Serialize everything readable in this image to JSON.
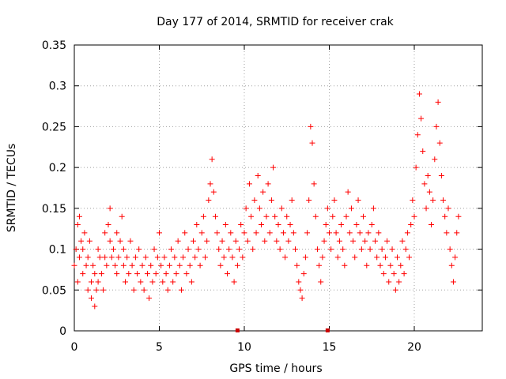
{
  "chart_data": {
    "type": "scatter",
    "title": "Day 177 of 2014, SRMTID for receiver crak",
    "xlabel": "GPS time / hours",
    "ylabel": "SRMTID / TECUs",
    "xlim": [
      0,
      24
    ],
    "ylim": [
      0,
      0.35
    ],
    "xticks": [
      0,
      5,
      10,
      15,
      20
    ],
    "xtick_labels": [
      "0",
      "5",
      "10",
      "15",
      "20"
    ],
    "yticks": [
      0,
      0.05,
      0.1,
      0.15,
      0.2,
      0.25,
      0.3,
      0.35
    ],
    "ytick_labels": [
      "0",
      "0.05",
      "0.1",
      "0.15",
      "0.2",
      "0.25",
      "0.3",
      "0.35"
    ],
    "grid": true,
    "marker": "plus",
    "color": "#ff0000",
    "marker_color_zero": "#cc0000",
    "series": [
      {
        "name": "SRMTID",
        "x": [
          0.0,
          0.1,
          0.2,
          0.2,
          0.3,
          0.3,
          0.4,
          0.5,
          0.5,
          0.6,
          0.7,
          0.8,
          0.8,
          0.9,
          1.0,
          1.0,
          1.1,
          1.2,
          1.2,
          1.3,
          1.4,
          1.4,
          1.5,
          1.6,
          1.7,
          1.8,
          1.8,
          1.9,
          2.0,
          2.1,
          2.1,
          2.2,
          2.3,
          2.4,
          2.5,
          2.5,
          2.6,
          2.7,
          2.8,
          2.9,
          2.9,
          3.0,
          3.1,
          3.2,
          3.3,
          3.4,
          3.5,
          3.6,
          3.7,
          3.8,
          3.9,
          4.0,
          4.1,
          4.2,
          4.3,
          4.4,
          4.5,
          4.6,
          4.7,
          4.8,
          4.9,
          5.0,
          5.1,
          5.2,
          5.3,
          5.4,
          5.5,
          5.6,
          5.7,
          5.8,
          5.9,
          6.0,
          6.1,
          6.2,
          6.3,
          6.4,
          6.5,
          6.6,
          6.7,
          6.8,
          6.9,
          7.0,
          7.1,
          7.2,
          7.3,
          7.4,
          7.5,
          7.6,
          7.7,
          7.8,
          7.9,
          8.0,
          8.1,
          8.2,
          8.3,
          8.4,
          8.5,
          8.6,
          8.7,
          8.8,
          8.9,
          9.0,
          9.1,
          9.2,
          9.3,
          9.4,
          9.5,
          9.6,
          9.7,
          9.8,
          9.9,
          10.0,
          10.1,
          10.2,
          10.3,
          10.4,
          10.5,
          10.6,
          10.7,
          10.8,
          10.9,
          11.0,
          11.1,
          11.2,
          11.3,
          11.4,
          11.5,
          11.6,
          11.7,
          11.8,
          11.9,
          12.0,
          12.1,
          12.2,
          12.3,
          12.4,
          12.5,
          12.6,
          12.7,
          12.8,
          12.9,
          13.0,
          13.1,
          13.2,
          13.3,
          13.4,
          13.5,
          13.6,
          13.7,
          13.8,
          13.9,
          14.0,
          14.1,
          14.2,
          14.3,
          14.4,
          14.5,
          14.6,
          14.7,
          14.8,
          14.9,
          15.0,
          15.1,
          15.2,
          15.3,
          15.4,
          15.5,
          15.6,
          15.7,
          15.8,
          15.9,
          16.0,
          16.1,
          16.2,
          16.3,
          16.4,
          16.5,
          16.6,
          16.7,
          16.8,
          16.9,
          17.0,
          17.1,
          17.2,
          17.3,
          17.4,
          17.5,
          17.6,
          17.7,
          17.8,
          17.9,
          18.0,
          18.1,
          18.2,
          18.3,
          18.4,
          18.5,
          18.6,
          18.7,
          18.8,
          18.9,
          19.0,
          19.1,
          19.2,
          19.3,
          19.4,
          19.5,
          19.6,
          19.7,
          19.8,
          19.9,
          20.0,
          20.1,
          20.2,
          20.3,
          20.4,
          20.5,
          20.6,
          20.7,
          20.8,
          20.9,
          21.0,
          21.1,
          21.2,
          21.3,
          21.4,
          21.5,
          21.6,
          21.7,
          21.8,
          21.9,
          22.0,
          22.1,
          22.2,
          22.3,
          22.4,
          22.5,
          22.6
        ],
        "y": [
          0.08,
          0.1,
          0.06,
          0.13,
          0.14,
          0.09,
          0.11,
          0.07,
          0.1,
          0.12,
          0.08,
          0.05,
          0.09,
          0.11,
          0.06,
          0.04,
          0.08,
          0.03,
          0.07,
          0.05,
          0.1,
          0.06,
          0.09,
          0.07,
          0.05,
          0.09,
          0.12,
          0.08,
          0.13,
          0.15,
          0.11,
          0.09,
          0.1,
          0.08,
          0.12,
          0.07,
          0.09,
          0.11,
          0.14,
          0.08,
          0.1,
          0.06,
          0.09,
          0.07,
          0.11,
          0.08,
          0.05,
          0.09,
          0.07,
          0.1,
          0.06,
          0.08,
          0.05,
          0.09,
          0.07,
          0.04,
          0.08,
          0.06,
          0.1,
          0.07,
          0.09,
          0.12,
          0.08,
          0.06,
          0.09,
          0.07,
          0.05,
          0.08,
          0.1,
          0.06,
          0.09,
          0.07,
          0.11,
          0.08,
          0.05,
          0.09,
          0.12,
          0.07,
          0.1,
          0.08,
          0.06,
          0.11,
          0.09,
          0.13,
          0.1,
          0.08,
          0.12,
          0.14,
          0.09,
          0.11,
          0.16,
          0.18,
          0.21,
          0.17,
          0.14,
          0.12,
          0.1,
          0.08,
          0.11,
          0.09,
          0.13,
          0.07,
          0.1,
          0.12,
          0.09,
          0.06,
          0.11,
          0.08,
          0.1,
          0.13,
          0.09,
          0.12,
          0.15,
          0.11,
          0.18,
          0.14,
          0.1,
          0.16,
          0.12,
          0.19,
          0.15,
          0.13,
          0.17,
          0.11,
          0.14,
          0.18,
          0.12,
          0.16,
          0.2,
          0.14,
          0.11,
          0.13,
          0.1,
          0.15,
          0.12,
          0.09,
          0.14,
          0.11,
          0.13,
          0.16,
          0.12,
          0.1,
          0.08,
          0.06,
          0.05,
          0.04,
          0.07,
          0.09,
          0.12,
          0.16,
          0.25,
          0.23,
          0.18,
          0.14,
          0.1,
          0.08,
          0.06,
          0.09,
          0.11,
          0.13,
          0.15,
          0.12,
          0.1,
          0.14,
          0.16,
          0.12,
          0.09,
          0.11,
          0.13,
          0.1,
          0.08,
          0.14,
          0.17,
          0.12,
          0.15,
          0.11,
          0.09,
          0.13,
          0.16,
          0.12,
          0.1,
          0.14,
          0.11,
          0.08,
          0.12,
          0.1,
          0.13,
          0.15,
          0.11,
          0.09,
          0.12,
          0.08,
          0.1,
          0.07,
          0.09,
          0.11,
          0.06,
          0.08,
          0.1,
          0.07,
          0.05,
          0.09,
          0.06,
          0.08,
          0.11,
          0.07,
          0.1,
          0.12,
          0.09,
          0.13,
          0.16,
          0.14,
          0.2,
          0.24,
          0.29,
          0.26,
          0.22,
          0.18,
          0.15,
          0.19,
          0.17,
          0.13,
          0.16,
          0.21,
          0.25,
          0.28,
          0.23,
          0.19,
          0.16,
          0.14,
          0.12,
          0.15,
          0.1,
          0.08,
          0.06,
          0.09,
          0.12,
          0.14
        ]
      },
      {
        "name": "zero-markers",
        "x": [
          9.6,
          14.9
        ],
        "y": [
          0,
          0
        ]
      }
    ]
  }
}
